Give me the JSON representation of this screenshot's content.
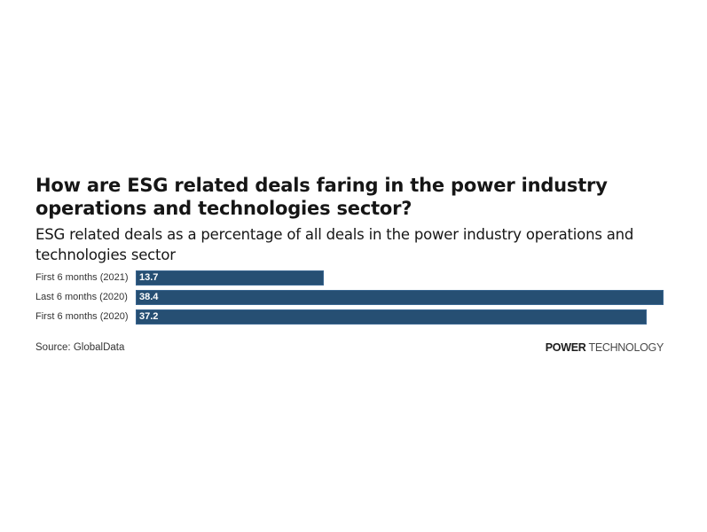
{
  "chart_data": {
    "type": "bar",
    "orientation": "horizontal",
    "title": "How are ESG related deals faring in the power industry operations and technologies sector?",
    "subtitle": "ESG related deals as a percentage of all deals in the power industry operations and technologies sector",
    "categories": [
      "First 6 months (2021)",
      "Last 6 months (2020)",
      "First 6 months (2020)"
    ],
    "values": [
      13.7,
      38.4,
      37.2
    ],
    "value_labels": [
      "13.7",
      "38.4",
      "37.2"
    ],
    "xlabel": "",
    "ylabel": "",
    "xlim": [
      0,
      38.4
    ],
    "grid": false,
    "legend": null,
    "bar_color": "#264f73",
    "source": "Source: GlobalData"
  },
  "header": {
    "title": "How are ESG related deals faring in the power industry operations and technologies sector?",
    "subtitle": "ESG related deals as a percentage of all deals in the power industry operations and technologies sector"
  },
  "bars": [
    {
      "label": "First 6 months (2021)",
      "value": "13.7"
    },
    {
      "label": "Last 6 months (2020)",
      "value": "38.4"
    },
    {
      "label": "First 6 months (2020)",
      "value": "37.2"
    }
  ],
  "footer": {
    "source": "Source: GlobalData",
    "brand_bold": "POWER",
    "brand_light": "TECHNOLOGY"
  },
  "colors": {
    "bar": "#264f73",
    "text": "#161616"
  }
}
